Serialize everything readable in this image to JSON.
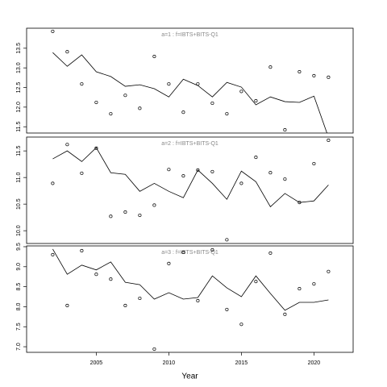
{
  "chart_data": [
    {
      "type": "line",
      "title": "a=1 : f=IBTS+BITS-Q1",
      "x": [
        2002,
        2003,
        2004,
        2005,
        2006,
        2007,
        2008,
        2009,
        2010,
        2011,
        2012,
        2013,
        2014,
        2015,
        2016,
        2017,
        2018,
        2019,
        2020,
        2021
      ],
      "series": [
        {
          "style": "line",
          "color": "#000000",
          "values": [
            13.39,
            13.04,
            13.33,
            12.9,
            12.78,
            12.53,
            12.57,
            12.47,
            12.26,
            12.71,
            12.55,
            12.26,
            12.63,
            12.51,
            12.06,
            12.26,
            12.14,
            12.12,
            12.28,
            11.23
          ]
        },
        {
          "style": "points",
          "color": "#000000",
          "values": [
            13.93,
            13.41,
            12.59,
            12.12,
            11.83,
            12.3,
            11.97,
            13.29,
            12.59,
            11.87,
            12.59,
            12.1,
            11.83,
            12.4,
            12.16,
            13.02,
            11.42,
            12.9,
            12.8,
            12.76
          ]
        }
      ],
      "xlim": [
        2000.2,
        2022.7
      ],
      "ylim": [
        11.34,
        14.01
      ],
      "yticks": [
        11.5,
        {
          "value": 12,
          "label": "12.0"
        },
        12.5,
        {
          "value": 13,
          "label": "13.0"
        },
        13.5
      ]
    },
    {
      "type": "line",
      "title": "a=2 : f=IBTS+BITS-Q1",
      "x": [
        2002,
        2003,
        2004,
        2005,
        2006,
        2007,
        2008,
        2009,
        2010,
        2011,
        2012,
        2013,
        2014,
        2015,
        2016,
        2017,
        2018,
        2019,
        2020,
        2021
      ],
      "series": [
        {
          "style": "line",
          "color": "#000000",
          "values": [
            11.35,
            11.5,
            11.3,
            11.56,
            11.09,
            11.06,
            10.74,
            10.89,
            10.74,
            10.62,
            11.14,
            10.89,
            10.59,
            11.12,
            10.92,
            10.45,
            10.7,
            10.53,
            10.56,
            10.86
          ]
        },
        {
          "style": "points",
          "color": "#000000",
          "values": [
            10.89,
            11.62,
            11.08,
            11.55,
            10.27,
            10.35,
            10.29,
            10.48,
            11.15,
            11.03,
            11.14,
            11.11,
            9.83,
            10.89,
            11.38,
            11.09,
            10.97,
            10.53,
            11.26,
            11.7
          ]
        }
      ],
      "xlim": [
        2000.2,
        2022.7
      ],
      "ylim": [
        9.76,
        11.76
      ],
      "yticks": [
        {
          "value": 10,
          "label": "10.0"
        },
        10.5,
        {
          "value": 11,
          "label": "11.0"
        },
        11.5
      ]
    },
    {
      "type": "line",
      "title": "a=3 : f=IBTS+BITS-Q1",
      "x": [
        2002,
        2003,
        2004,
        2005,
        2006,
        2007,
        2008,
        2009,
        2010,
        2011,
        2012,
        2013,
        2014,
        2015,
        2016,
        2017,
        2018,
        2019,
        2020,
        2021
      ],
      "series": [
        {
          "style": "line",
          "color": "#000000",
          "values": [
            9.44,
            8.81,
            9.04,
            8.92,
            9.12,
            8.61,
            8.55,
            8.19,
            8.35,
            8.19,
            8.23,
            8.77,
            8.47,
            8.25,
            8.77,
            8.33,
            7.91,
            8.11,
            8.11,
            8.17
          ]
        },
        {
          "style": "points",
          "color": "#000000",
          "values": [
            9.3,
            8.03,
            9.4,
            8.81,
            8.69,
            8.03,
            8.21,
            6.94,
            9.08,
            9.36,
            8.15,
            9.42,
            7.93,
            7.56,
            8.63,
            9.34,
            7.81,
            8.45,
            8.57,
            8.88
          ]
        }
      ],
      "xlim": [
        2000.2,
        2022.7
      ],
      "ylim": [
        6.86,
        9.52
      ],
      "yticks": [
        {
          "value": 7,
          "label": "7.0"
        },
        7.5,
        {
          "value": 8,
          "label": "8.0"
        },
        8.5,
        {
          "value": 9,
          "label": "9.0"
        },
        9.5
      ],
      "xticks": [
        2005,
        2010,
        2015,
        2020
      ],
      "xlabel": "Year"
    }
  ]
}
